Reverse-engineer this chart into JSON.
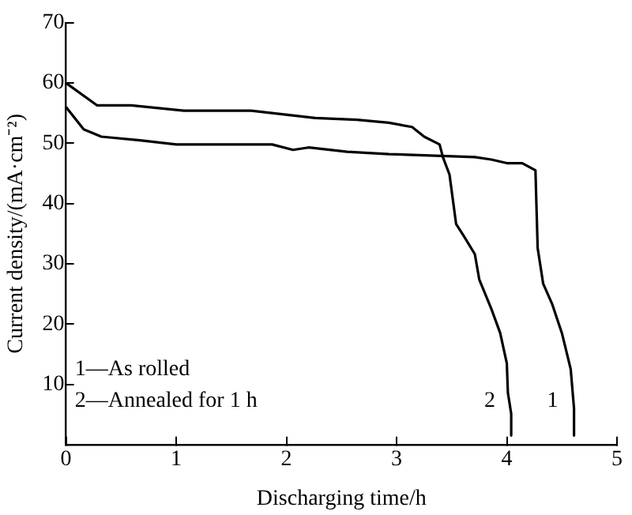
{
  "chart_data": {
    "type": "line",
    "xlabel": "Discharging time/h",
    "ylabel": "Current density/(mA·cm⁻²)",
    "xlim": [
      0,
      5
    ],
    "ylim": [
      0,
      70
    ],
    "xticks": [
      0,
      1,
      2,
      3,
      4,
      5
    ],
    "yticks": [
      {
        "value": 0,
        "label": null
      },
      10,
      20,
      30,
      40,
      50,
      60,
      70
    ],
    "grid": false,
    "legend": false,
    "marker": "none",
    "line_style": "solid",
    "annotations": [
      "1—As rolled",
      "2—Annealed for 1 h"
    ],
    "series": [
      {
        "name": "1",
        "color": "#000000",
        "x": [
          0,
          0.16,
          0.32,
          0.67,
          1.0,
          1.87,
          2.06,
          2.2,
          2.55,
          2.93,
          3.71,
          3.86,
          4.0,
          4.14,
          4.26,
          4.28,
          4.33,
          4.41,
          4.5,
          4.58,
          4.61,
          4.61
        ],
        "values": [
          56,
          52.3,
          51.1,
          50.5,
          49.8,
          49.8,
          48.9,
          49.3,
          48.6,
          48.2,
          47.7,
          47.3,
          46.7,
          46.7,
          45.5,
          32.6,
          26.7,
          23.4,
          18.5,
          12.5,
          6,
          1.5
        ]
      },
      {
        "name": "2",
        "color": "#000000",
        "x": [
          0,
          0.28,
          0.59,
          1.07,
          1.68,
          2.26,
          2.64,
          2.93,
          3.14,
          3.25,
          3.39,
          3.42,
          3.48,
          3.54,
          3.61,
          3.71,
          3.75,
          3.86,
          3.94,
          4.0,
          4.01,
          4.04,
          4.04
        ],
        "values": [
          60,
          56.3,
          56.3,
          55.4,
          55.4,
          54.2,
          53.9,
          53.4,
          52.7,
          51.1,
          49.8,
          47.7,
          44.8,
          36.6,
          34.6,
          31.6,
          27.4,
          22.5,
          18.5,
          13.5,
          8.6,
          5.1,
          1.5
        ]
      }
    ]
  }
}
